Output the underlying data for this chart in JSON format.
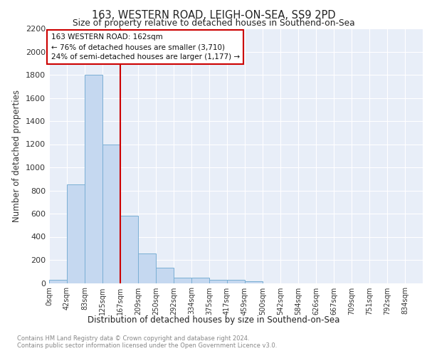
{
  "title1": "163, WESTERN ROAD, LEIGH-ON-SEA, SS9 2PD",
  "title2": "Size of property relative to detached houses in Southend-on-Sea",
  "xlabel": "Distribution of detached houses by size in Southend-on-Sea",
  "ylabel": "Number of detached properties",
  "bar_labels": [
    "0sqm",
    "42sqm",
    "83sqm",
    "125sqm",
    "167sqm",
    "209sqm",
    "250sqm",
    "292sqm",
    "334sqm",
    "375sqm",
    "417sqm",
    "459sqm",
    "500sqm",
    "542sqm",
    "584sqm",
    "626sqm",
    "667sqm",
    "709sqm",
    "751sqm",
    "792sqm",
    "834sqm"
  ],
  "bar_values": [
    25,
    850,
    1800,
    1200,
    580,
    255,
    130,
    45,
    45,
    30,
    25,
    18,
    0,
    0,
    0,
    0,
    0,
    0,
    0,
    0,
    0
  ],
  "bar_color": "#c5d8f0",
  "bar_edge_color": "#7aafd4",
  "ylim": [
    0,
    2200
  ],
  "yticks": [
    0,
    200,
    400,
    600,
    800,
    1000,
    1200,
    1400,
    1600,
    1800,
    2000,
    2200
  ],
  "vline_x_index": 4.0,
  "vline_color": "#cc0000",
  "annotation_line1": "163 WESTERN ROAD: 162sqm",
  "annotation_line2": "← 76% of detached houses are smaller (3,710)",
  "annotation_line3": "24% of semi-detached houses are larger (1,177) →",
  "annotation_box_color": "#ffffff",
  "annotation_box_edge": "#cc0000",
  "background_color": "#e8eef8",
  "grid_color": "#ffffff",
  "footer1": "Contains HM Land Registry data © Crown copyright and database right 2024.",
  "footer2": "Contains public sector information licensed under the Open Government Licence v3.0."
}
